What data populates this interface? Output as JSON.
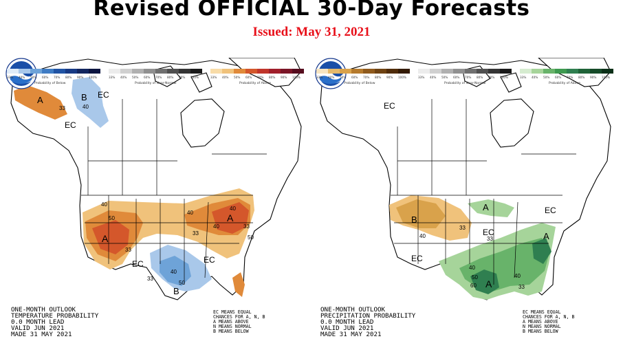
{
  "header": {
    "title": "Revised OFFICIAL 30-Day Forecasts",
    "issued": "Issued: May 31, 2021"
  },
  "colors": {
    "issued_red": "#e8101a",
    "above_light": "#f0c27b",
    "above_mid": "#e08a3a",
    "above_dark": "#d4572b",
    "below_light": "#a9c8ea",
    "below_mid": "#6ea3d8",
    "wet_light": "#a6d49a",
    "wet_mid": "#68b36a",
    "wet_dark": "#2f7f50",
    "dry_light": "#e5b96a",
    "dry_mid": "#d9a24b"
  },
  "maps": [
    {
      "id": "temperature",
      "lines": [
        "ONE-MONTH OUTLOOK",
        "TEMPERATURE PROBABILITY",
        "0.0 MONTH LEAD",
        "VALID JUN 2021",
        "MADE 31 MAY 2021"
      ],
      "ec_note": [
        "EC MEANS EQUAL",
        "CHANCES FOR A, N, B",
        "A MEANS ABOVE",
        "N MEANS NORMAL",
        "B MEANS BELOW"
      ],
      "region_labels": [
        "B",
        "EC",
        "40",
        "33",
        "EC",
        "A",
        "40",
        "50",
        "A",
        "33",
        "EC",
        "33",
        "40",
        "50",
        "B",
        "EC",
        "40",
        "40",
        "33",
        "A",
        "33",
        "50",
        "40"
      ],
      "legend": [
        {
          "caption": "Probability of Below",
          "ticks": [
            "33%",
            "40%",
            "50%",
            "60%",
            "70%",
            "80%",
            "90%",
            "100%"
          ]
        },
        {
          "caption": "Probability of Near-Normal",
          "ticks": [
            "33%",
            "40%",
            "50%",
            "60%",
            "70%",
            "80%",
            "90%",
            "100%"
          ]
        },
        {
          "caption": "Probability of Above",
          "ticks": [
            "33%",
            "40%",
            "50%",
            "60%",
            "70%",
            "80%",
            "90%",
            "100%"
          ]
        }
      ]
    },
    {
      "id": "precipitation",
      "lines": [
        "ONE-MONTH OUTLOOK",
        "PRECIPITATION PROBABILITY",
        "0.0 MONTH LEAD",
        "VALID JUN 2021",
        "MADE 31 MAY 2021"
      ],
      "ec_note": [
        "EC MEANS EQUAL",
        "CHANCES FOR A, N, B",
        "A MEANS ABOVE",
        "N MEANS NORMAL",
        "B MEANS BELOW"
      ],
      "region_labels": [
        "EC",
        "B",
        "40",
        "33",
        "A",
        "EC",
        "EC",
        "EC",
        "33",
        "A",
        "40",
        "50",
        "60",
        "A",
        "40",
        "33"
      ],
      "legend": [
        {
          "caption": "Probability of Below",
          "ticks": [
            "33%",
            "40%",
            "50%",
            "60%",
            "70%",
            "80%",
            "90%",
            "100%"
          ]
        },
        {
          "caption": "Probability of Near-Normal",
          "ticks": [
            "33%",
            "40%",
            "50%",
            "60%",
            "70%",
            "80%",
            "90%",
            "100%"
          ]
        },
        {
          "caption": "Probability of Above",
          "ticks": [
            "33%",
            "40%",
            "50%",
            "60%",
            "70%",
            "80%",
            "90%",
            "100%"
          ]
        }
      ]
    }
  ]
}
